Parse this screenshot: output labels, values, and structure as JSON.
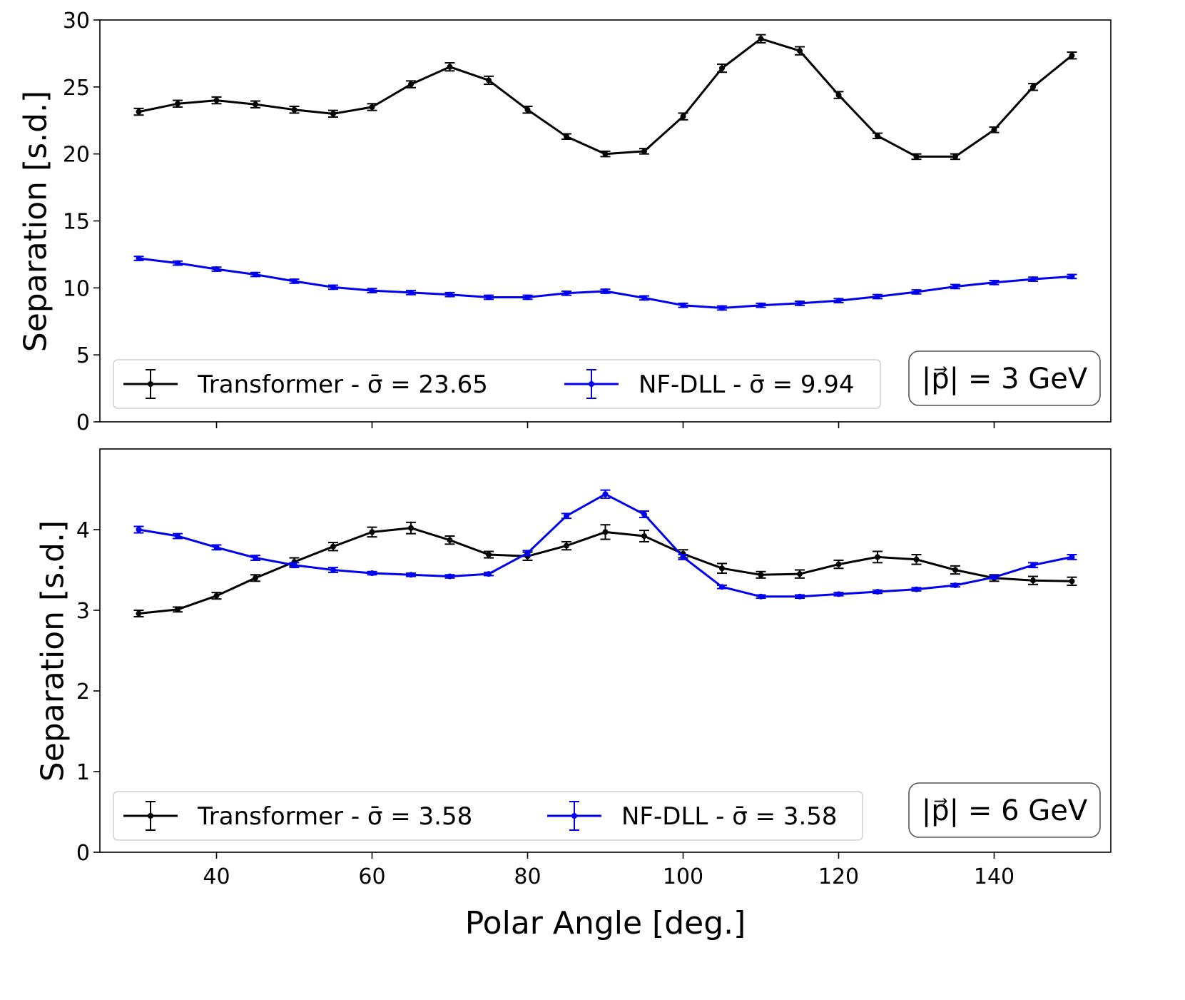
{
  "chart_data": [
    {
      "type": "line",
      "panel": "top",
      "ylabel": "Separation [s.d.]",
      "xlabel": "",
      "xlim": [
        25,
        155
      ],
      "ylim": [
        0,
        30
      ],
      "yticks": [
        0,
        5,
        10,
        15,
        20,
        25,
        30
      ],
      "xticks": [
        40,
        60,
        80,
        100,
        120,
        140
      ],
      "show_xtick_labels": false,
      "grid": false,
      "legend_placement": "lower-left",
      "annotation": "|p⃗| = 3 GeV",
      "x": [
        30,
        35,
        40,
        45,
        50,
        55,
        60,
        65,
        70,
        75,
        80,
        85,
        90,
        95,
        100,
        105,
        110,
        115,
        120,
        125,
        130,
        135,
        140,
        145,
        150
      ],
      "series": [
        {
          "name": "Transformer - σ̄ = 23.65",
          "color": "#000000",
          "values": [
            23.15,
            23.75,
            24.0,
            23.7,
            23.3,
            23.0,
            23.5,
            25.2,
            26.5,
            25.5,
            23.3,
            21.3,
            20.0,
            20.2,
            22.8,
            26.4,
            28.6,
            27.7,
            24.4,
            21.35,
            19.8,
            19.8,
            21.8,
            25.0,
            27.35
          ],
          "errors": [
            0.25,
            0.25,
            0.25,
            0.25,
            0.25,
            0.25,
            0.25,
            0.25,
            0.3,
            0.3,
            0.25,
            0.2,
            0.2,
            0.2,
            0.25,
            0.3,
            0.3,
            0.3,
            0.25,
            0.2,
            0.2,
            0.2,
            0.2,
            0.25,
            0.25
          ]
        },
        {
          "name": "NF-DLL - σ̄ = 9.94",
          "color": "#0000ee",
          "values": [
            12.2,
            11.85,
            11.4,
            11.0,
            10.5,
            10.05,
            9.8,
            9.65,
            9.5,
            9.3,
            9.3,
            9.6,
            9.75,
            9.25,
            8.7,
            8.5,
            8.7,
            8.85,
            9.05,
            9.35,
            9.7,
            10.1,
            10.4,
            10.65,
            10.85
          ],
          "errors": [
            0.15,
            0.15,
            0.15,
            0.15,
            0.15,
            0.15,
            0.15,
            0.15,
            0.15,
            0.15,
            0.15,
            0.15,
            0.15,
            0.15,
            0.15,
            0.15,
            0.15,
            0.15,
            0.15,
            0.15,
            0.15,
            0.15,
            0.15,
            0.15,
            0.15
          ]
        }
      ]
    },
    {
      "type": "line",
      "panel": "bottom",
      "ylabel": "Separation [s.d.]",
      "xlabel": "Polar Angle [deg.]",
      "xlim": [
        25,
        155
      ],
      "ylim": [
        0,
        5
      ],
      "yticks": [
        0,
        1,
        2,
        3,
        4
      ],
      "xticks": [
        40,
        60,
        80,
        100,
        120,
        140
      ],
      "show_xtick_labels": true,
      "grid": false,
      "legend_placement": "lower-left",
      "annotation": "|p⃗| = 6 GeV",
      "x": [
        30,
        35,
        40,
        45,
        50,
        55,
        60,
        65,
        70,
        75,
        80,
        85,
        90,
        95,
        100,
        105,
        110,
        115,
        120,
        125,
        130,
        135,
        140,
        145,
        150
      ],
      "series": [
        {
          "name": "Transformer - σ̄ = 3.58",
          "color": "#000000",
          "values": [
            2.96,
            3.01,
            3.18,
            3.4,
            3.6,
            3.79,
            3.97,
            4.02,
            3.87,
            3.69,
            3.67,
            3.8,
            3.97,
            3.92,
            3.7,
            3.52,
            3.44,
            3.45,
            3.57,
            3.66,
            3.63,
            3.5,
            3.4,
            3.37,
            3.36
          ],
          "errors": [
            0.04,
            0.03,
            0.04,
            0.04,
            0.05,
            0.05,
            0.06,
            0.07,
            0.05,
            0.04,
            0.05,
            0.05,
            0.09,
            0.07,
            0.05,
            0.06,
            0.04,
            0.05,
            0.05,
            0.07,
            0.06,
            0.05,
            0.04,
            0.05,
            0.05
          ]
        },
        {
          "name": "NF-DLL - σ̄ = 3.58",
          "color": "#0000ee",
          "values": [
            4.0,
            3.92,
            3.78,
            3.65,
            3.56,
            3.5,
            3.46,
            3.44,
            3.42,
            3.45,
            3.71,
            4.17,
            4.44,
            4.19,
            3.66,
            3.29,
            3.17,
            3.17,
            3.2,
            3.23,
            3.26,
            3.31,
            3.41,
            3.56,
            3.66
          ],
          "errors": [
            0.04,
            0.03,
            0.03,
            0.03,
            0.03,
            0.03,
            0.02,
            0.02,
            0.02,
            0.02,
            0.03,
            0.03,
            0.05,
            0.04,
            0.03,
            0.02,
            0.02,
            0.02,
            0.02,
            0.02,
            0.02,
            0.02,
            0.02,
            0.03,
            0.03
          ]
        }
      ]
    }
  ]
}
